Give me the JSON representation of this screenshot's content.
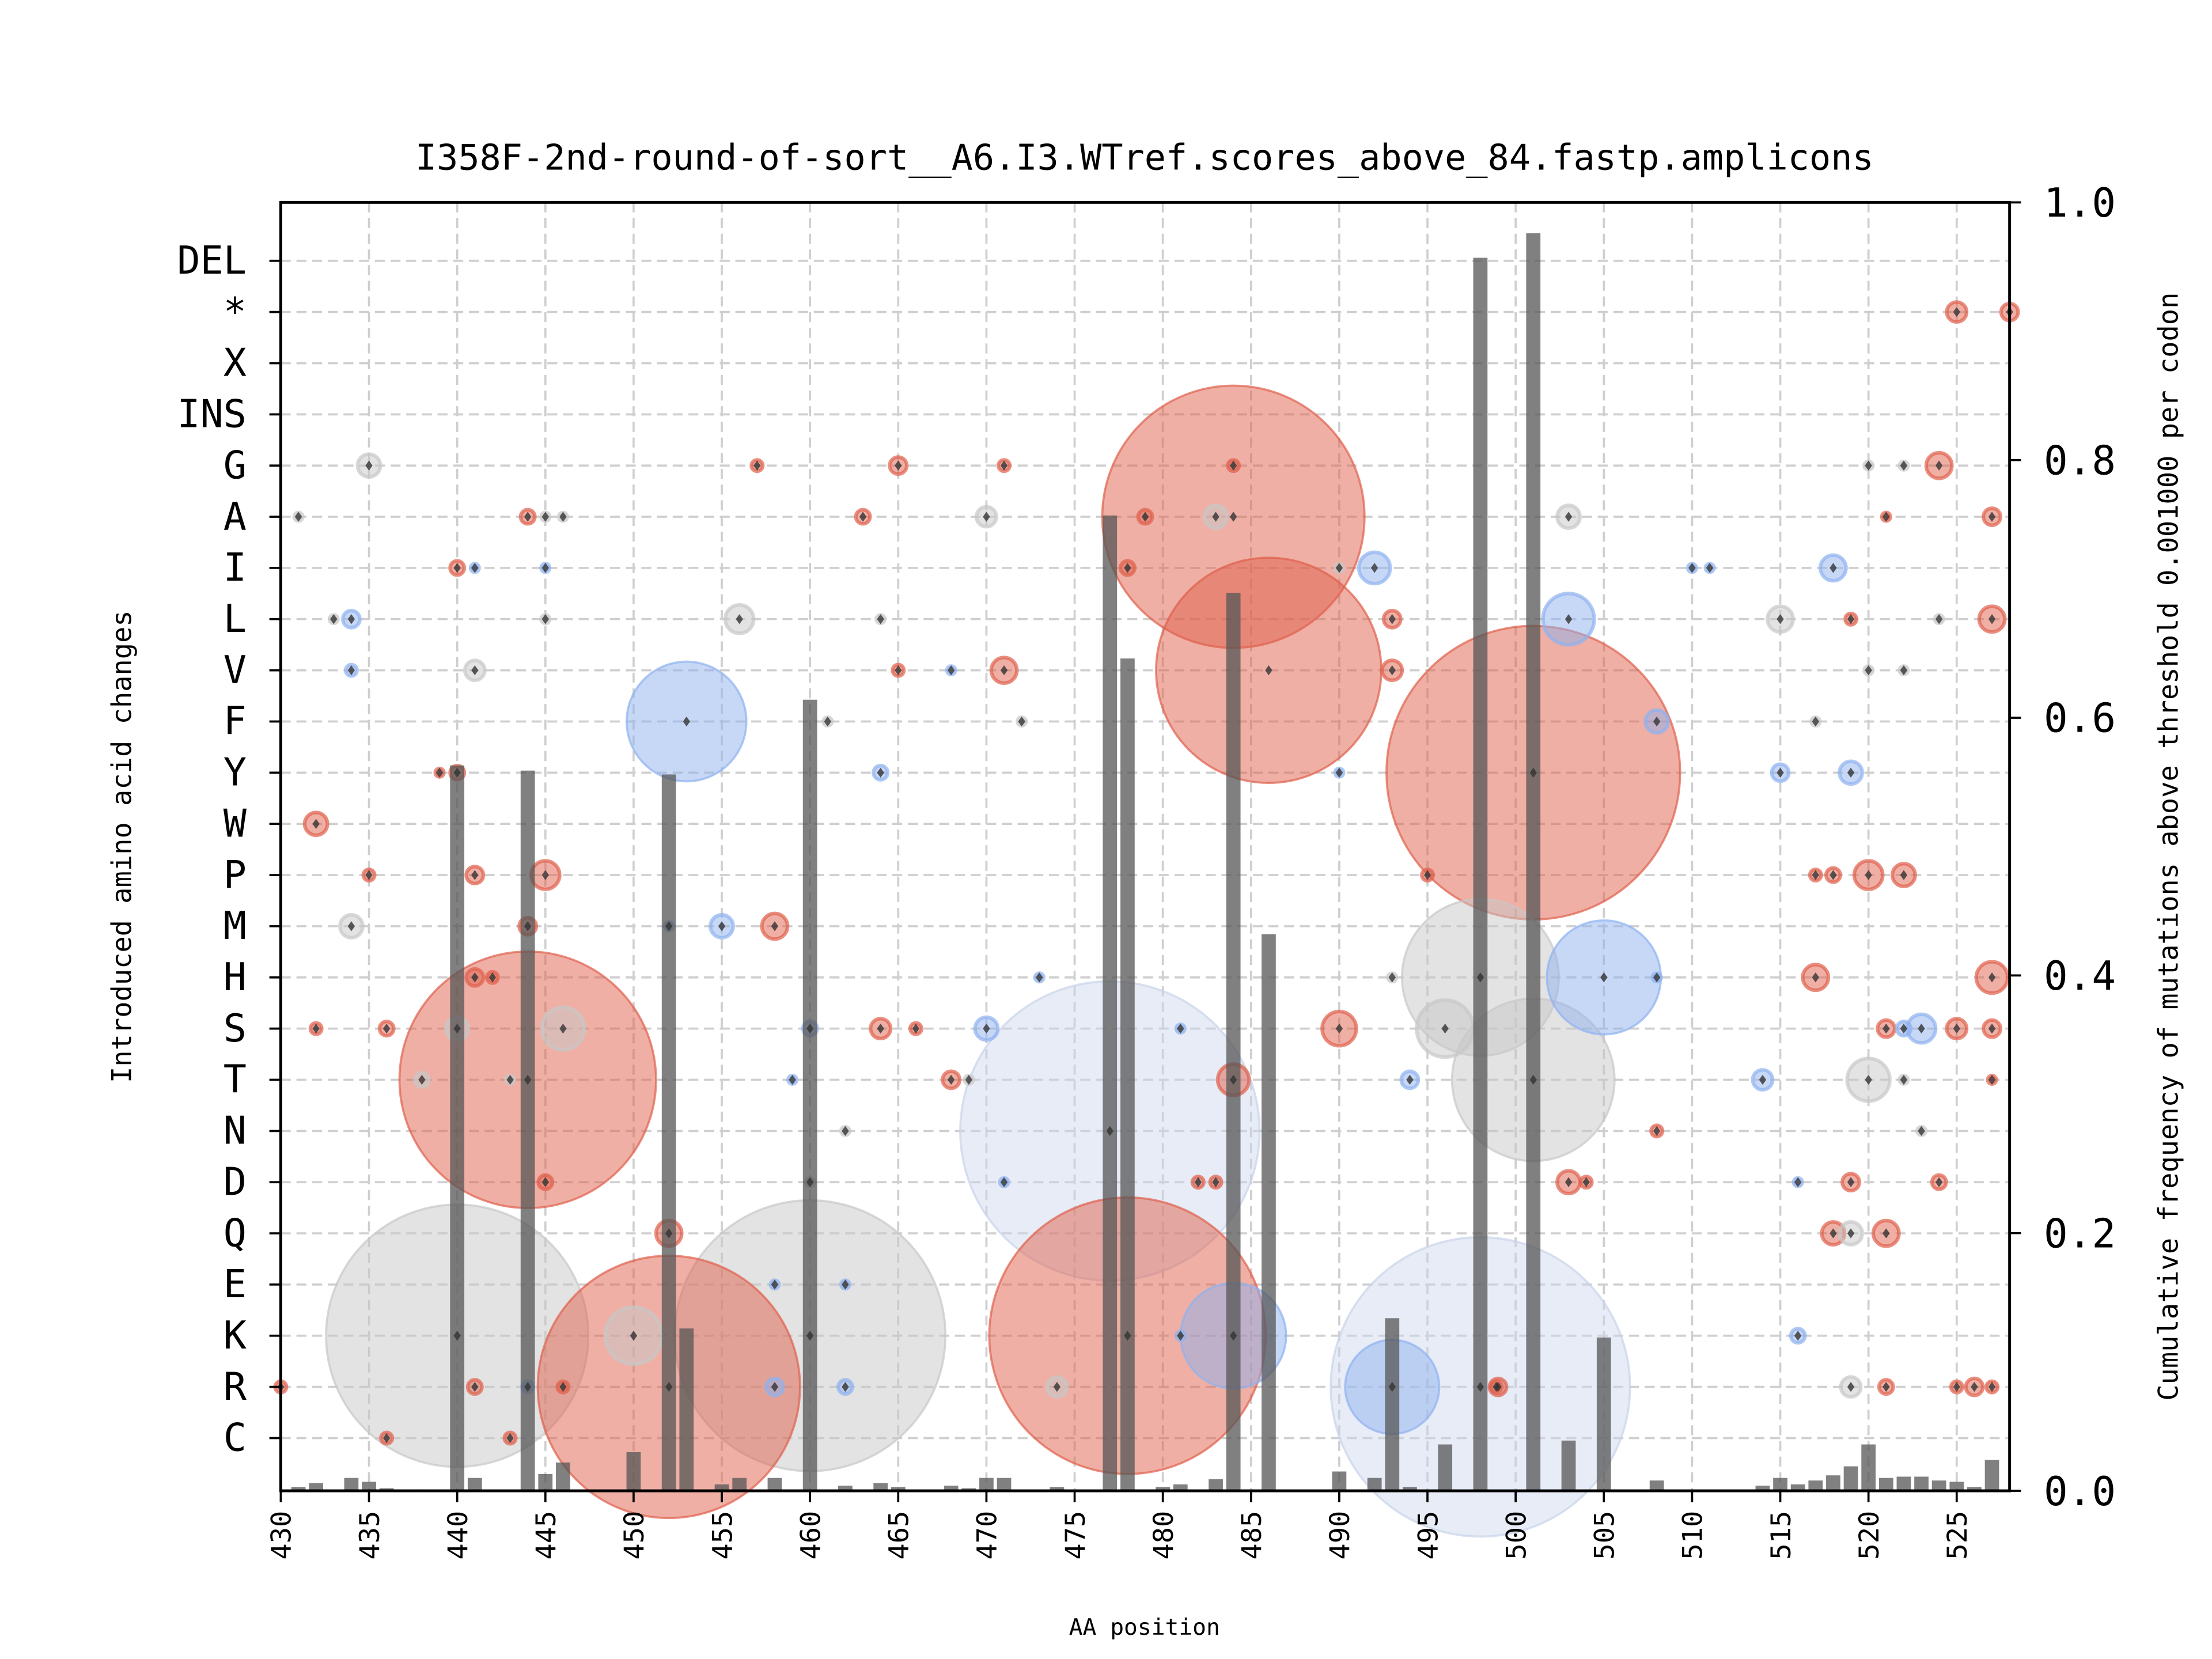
{
  "chart_data": {
    "type": "scatter",
    "title": "I358F-2nd-round-of-sort__A6.I3.WTref.scores_above_84.fastp.amplicons",
    "xlabel": "AA position",
    "ylabel": "Introduced amino acid changes",
    "ylabel_right": "Cumulative frequency of mutations above threshold 0.001000 per codon",
    "xlim": [
      430,
      528
    ],
    "ylim_right": [
      0,
      1.0
    ],
    "grid": true,
    "x_ticks": [
      "430",
      "435",
      "440",
      "445",
      "450",
      "455",
      "460",
      "465",
      "470",
      "475",
      "480",
      "485",
      "490",
      "495",
      "500",
      "505",
      "510",
      "515",
      "520",
      "525"
    ],
    "right_ticks": [
      "0.0",
      "0.2",
      "0.4",
      "0.6",
      "0.8",
      "1.0"
    ],
    "categories": [
      "DEL",
      "*",
      "X",
      "INS",
      "G",
      "A",
      "I",
      "L",
      "V",
      "F",
      "Y",
      "W",
      "P",
      "M",
      "H",
      "S",
      "T",
      "N",
      "D",
      "Q",
      "E",
      "K",
      "R",
      "C"
    ],
    "colors": {
      "red": "#e0604c",
      "blue": "#8fb2ef",
      "gray": "#c8c8c8",
      "pale": "#c9d4ea",
      "bar": "#555555",
      "marker": "#333333"
    },
    "bars": [
      [
        431,
        0.003
      ],
      [
        432,
        0.006
      ],
      [
        434,
        0.01
      ],
      [
        435,
        0.007
      ],
      [
        436,
        0.002
      ],
      [
        438,
        0.001
      ],
      [
        440,
        0.563
      ],
      [
        441,
        0.01
      ],
      [
        444,
        0.559
      ],
      [
        445,
        0.013
      ],
      [
        446,
        0.022
      ],
      [
        450,
        0.03
      ],
      [
        452,
        0.556
      ],
      [
        453,
        0.126
      ],
      [
        455,
        0.005
      ],
      [
        456,
        0.01
      ],
      [
        458,
        0.01
      ],
      [
        460,
        0.614
      ],
      [
        462,
        0.004
      ],
      [
        464,
        0.006
      ],
      [
        465,
        0.003
      ],
      [
        468,
        0.004
      ],
      [
        469,
        0.002
      ],
      [
        470,
        0.01
      ],
      [
        471,
        0.01
      ],
      [
        474,
        0.003
      ],
      [
        477,
        0.757
      ],
      [
        478,
        0.646
      ],
      [
        480,
        0.003
      ],
      [
        481,
        0.005
      ],
      [
        483,
        0.009
      ],
      [
        484,
        0.697
      ],
      [
        486,
        0.432
      ],
      [
        490,
        0.015
      ],
      [
        492,
        0.01
      ],
      [
        493,
        0.134
      ],
      [
        494,
        0.003
      ],
      [
        496,
        0.036
      ],
      [
        498,
        0.957
      ],
      [
        501,
        0.976
      ],
      [
        503,
        0.039
      ],
      [
        505,
        0.119
      ],
      [
        508,
        0.008
      ],
      [
        514,
        0.004
      ],
      [
        515,
        0.01
      ],
      [
        516,
        0.005
      ],
      [
        517,
        0.008
      ],
      [
        518,
        0.012
      ],
      [
        519,
        0.019
      ],
      [
        520,
        0.036
      ],
      [
        521,
        0.01
      ],
      [
        522,
        0.011
      ],
      [
        523,
        0.011
      ],
      [
        524,
        0.008
      ],
      [
        525,
        0.007
      ],
      [
        526,
        0.003
      ],
      [
        527,
        0.024
      ]
    ],
    "points": [
      [
        435,
        "G",
        "gray",
        0.0064
      ],
      [
        457,
        "G",
        "red",
        0.0016
      ],
      [
        465,
        "G",
        "red",
        0.0036
      ],
      [
        471,
        "G",
        "red",
        0.0016
      ],
      [
        484,
        "G",
        "red",
        0.0016
      ],
      [
        520,
        "G",
        "gray",
        0.0004
      ],
      [
        522,
        "G",
        "gray",
        0.0009
      ],
      [
        524,
        "G",
        "red",
        0.0081
      ],
      [
        431,
        "A",
        "gray",
        0.0009
      ],
      [
        444,
        "A",
        "red",
        0.0025
      ],
      [
        445,
        "A",
        "gray",
        0.0009
      ],
      [
        446,
        "A",
        "gray",
        0.0009
      ],
      [
        463,
        "A",
        "red",
        0.0025
      ],
      [
        470,
        "A",
        "gray",
        0.0049
      ],
      [
        479,
        "A",
        "red",
        0.0025
      ],
      [
        483,
        "A",
        "gray",
        0.0064
      ],
      [
        484,
        "A",
        "red",
        0.8464
      ],
      [
        503,
        "A",
        "gray",
        0.0064
      ],
      [
        521,
        "A",
        "red",
        0.0009
      ],
      [
        527,
        "A",
        "red",
        0.0036
      ],
      [
        440,
        "I",
        "red",
        0.0025
      ],
      [
        441,
        "I",
        "blue",
        0.0009
      ],
      [
        445,
        "I",
        "blue",
        0.0009
      ],
      [
        478,
        "I",
        "red",
        0.0025
      ],
      [
        490,
        "I",
        "gray",
        0.0004
      ],
      [
        492,
        "I",
        "blue",
        0.0121
      ],
      [
        510,
        "I",
        "blue",
        0.0009
      ],
      [
        511,
        "I",
        "blue",
        0.0009
      ],
      [
        518,
        "I",
        "blue",
        0.0081
      ],
      [
        433,
        "L",
        "gray",
        0.0009
      ],
      [
        434,
        "L",
        "blue",
        0.0036
      ],
      [
        445,
        "L",
        "gray",
        0.0009
      ],
      [
        456,
        "L",
        "gray",
        0.01
      ],
      [
        464,
        "L",
        "gray",
        0.0009
      ],
      [
        493,
        "L",
        "red",
        0.0036
      ],
      [
        503,
        "L",
        "blue",
        0.0324
      ],
      [
        515,
        "L",
        "gray",
        0.0081
      ],
      [
        519,
        "L",
        "red",
        0.0016
      ],
      [
        524,
        "L",
        "gray",
        0.0004
      ],
      [
        527,
        "L",
        "red",
        0.0081
      ],
      [
        434,
        "V",
        "blue",
        0.0016
      ],
      [
        441,
        "V",
        "gray",
        0.0049
      ],
      [
        465,
        "V",
        "red",
        0.0016
      ],
      [
        468,
        "V",
        "blue",
        0.0009
      ],
      [
        471,
        "V",
        "red",
        0.0081
      ],
      [
        486,
        "V",
        "red",
        0.6241
      ],
      [
        493,
        "V",
        "red",
        0.0049
      ],
      [
        520,
        "V",
        "gray",
        0.0004
      ],
      [
        522,
        "V",
        "gray",
        0.0004
      ],
      [
        453,
        "F",
        "blue",
        0.1764
      ],
      [
        461,
        "F",
        "gray",
        0.0009
      ],
      [
        472,
        "F",
        "gray",
        0.0004
      ],
      [
        508,
        "F",
        "blue",
        0.0064
      ],
      [
        517,
        "F",
        "gray",
        0.0004
      ],
      [
        439,
        "Y",
        "red",
        0.0009
      ],
      [
        440,
        "Y",
        "red",
        0.0025
      ],
      [
        464,
        "Y",
        "blue",
        0.0025
      ],
      [
        490,
        "Y",
        "blue",
        0.0009
      ],
      [
        501,
        "Y",
        "red",
        1.0609
      ],
      [
        515,
        "Y",
        "blue",
        0.0036
      ],
      [
        519,
        "Y",
        "blue",
        0.0064
      ],
      [
        432,
        "W",
        "red",
        0.0064
      ],
      [
        435,
        "P",
        "red",
        0.0016
      ],
      [
        441,
        "P",
        "red",
        0.0036
      ],
      [
        445,
        "P",
        "red",
        0.01
      ],
      [
        495,
        "P",
        "red",
        0.0016
      ],
      [
        517,
        "P",
        "red",
        0.0016
      ],
      [
        518,
        "P",
        "red",
        0.0025
      ],
      [
        520,
        "P",
        "red",
        0.01
      ],
      [
        522,
        "P",
        "red",
        0.0064
      ],
      [
        434,
        "M",
        "gray",
        0.0064
      ],
      [
        444,
        "M",
        "red",
        0.0036
      ],
      [
        452,
        "M",
        "blue",
        0.0009
      ],
      [
        455,
        "M",
        "blue",
        0.0064
      ],
      [
        458,
        "M",
        "red",
        0.0081
      ],
      [
        441,
        "H",
        "red",
        0.0036
      ],
      [
        442,
        "H",
        "red",
        0.0016
      ],
      [
        473,
        "H",
        "blue",
        0.0004
      ],
      [
        493,
        "H",
        "gray",
        0.0009
      ],
      [
        498,
        "H",
        "gray",
        0.3025
      ],
      [
        505,
        "H",
        "blue",
        0.16
      ],
      [
        508,
        "H",
        "blue",
        0.0009
      ],
      [
        517,
        "H",
        "red",
        0.0081
      ],
      [
        527,
        "H",
        "red",
        0.0121
      ],
      [
        432,
        "S",
        "red",
        0.0016
      ],
      [
        436,
        "S",
        "red",
        0.0025
      ],
      [
        440,
        "S",
        "gray",
        0.0064
      ],
      [
        446,
        "S",
        "gray",
        0.0225
      ],
      [
        460,
        "S",
        "blue",
        0.0025
      ],
      [
        464,
        "S",
        "red",
        0.0049
      ],
      [
        466,
        "S",
        "red",
        0.0016
      ],
      [
        470,
        "S",
        "blue",
        0.0064
      ],
      [
        481,
        "S",
        "blue",
        0.0009
      ],
      [
        490,
        "S",
        "red",
        0.0144
      ],
      [
        496,
        "S",
        "gray",
        0.04
      ],
      [
        521,
        "S",
        "red",
        0.0036
      ],
      [
        522,
        "S",
        "blue",
        0.0025
      ],
      [
        523,
        "S",
        "blue",
        0.01
      ],
      [
        525,
        "S",
        "red",
        0.0049
      ],
      [
        527,
        "S",
        "red",
        0.0036
      ],
      [
        438,
        "T",
        "gray",
        0.0025
      ],
      [
        443,
        "T",
        "gray",
        0.0009
      ],
      [
        444,
        "T",
        "red",
        0.81
      ],
      [
        459,
        "T",
        "blue",
        0.0009
      ],
      [
        468,
        "T",
        "red",
        0.0036
      ],
      [
        469,
        "T",
        "gray",
        0.0009
      ],
      [
        484,
        "T",
        "red",
        0.0121
      ],
      [
        494,
        "T",
        "blue",
        0.0036
      ],
      [
        501,
        "T",
        "gray",
        0.3249
      ],
      [
        514,
        "T",
        "blue",
        0.0049
      ],
      [
        520,
        "T",
        "gray",
        0.0225
      ],
      [
        522,
        "T",
        "gray",
        0.0009
      ],
      [
        527,
        "T",
        "red",
        0.0009
      ],
      [
        462,
        "N",
        "gray",
        0.0004
      ],
      [
        477,
        "N",
        "pale",
        1.1025
      ],
      [
        508,
        "N",
        "red",
        0.0016
      ],
      [
        523,
        "N",
        "gray",
        0.0009
      ],
      [
        445,
        "D",
        "red",
        0.0025
      ],
      [
        460,
        "D",
        "gray",
        0.0009
      ],
      [
        471,
        "D",
        "blue",
        0.0009
      ],
      [
        482,
        "D",
        "red",
        0.0016
      ],
      [
        483,
        "D",
        "red",
        0.0016
      ],
      [
        503,
        "D",
        "red",
        0.0064
      ],
      [
        504,
        "D",
        "red",
        0.0016
      ],
      [
        516,
        "D",
        "blue",
        0.0009
      ],
      [
        519,
        "D",
        "red",
        0.0036
      ],
      [
        524,
        "D",
        "red",
        0.0025
      ],
      [
        452,
        "Q",
        "red",
        0.0081
      ],
      [
        518,
        "Q",
        "red",
        0.0064
      ],
      [
        519,
        "Q",
        "gray",
        0.0064
      ],
      [
        521,
        "Q",
        "red",
        0.0081
      ],
      [
        458,
        "E",
        "blue",
        0.0009
      ],
      [
        462,
        "E",
        "blue",
        0.0009
      ],
      [
        440,
        "K",
        "gray",
        0.8464
      ],
      [
        450,
        "K",
        "gray",
        0.04
      ],
      [
        460,
        "K",
        "gray",
        0.9025
      ],
      [
        478,
        "K",
        "red",
        0.9409
      ],
      [
        484,
        "K",
        "blue",
        0.1369
      ],
      [
        481,
        "K",
        "blue",
        0.0009
      ],
      [
        516,
        "K",
        "blue",
        0.0025
      ],
      [
        430,
        "R",
        "red",
        0.0016
      ],
      [
        441,
        "R",
        "red",
        0.0025
      ],
      [
        444,
        "R",
        "blue",
        0.0016
      ],
      [
        446,
        "R",
        "red",
        0.0016
      ],
      [
        452,
        "R",
        "red",
        0.8464
      ],
      [
        458,
        "R",
        "blue",
        0.0036
      ],
      [
        462,
        "R",
        "blue",
        0.0025
      ],
      [
        474,
        "R",
        "gray",
        0.0049
      ],
      [
        493,
        "R",
        "blue",
        0.1089
      ],
      [
        498,
        "R",
        "pale",
        1.1025
      ],
      [
        498.9,
        "R",
        "red",
        0.0016
      ],
      [
        499,
        "R",
        "red",
        0.0036
      ],
      [
        519,
        "R",
        "gray",
        0.0049
      ],
      [
        521,
        "R",
        "red",
        0.0025
      ],
      [
        525,
        "R",
        "red",
        0.0016
      ],
      [
        526,
        "R",
        "red",
        0.0036
      ],
      [
        527,
        "R",
        "red",
        0.0016
      ],
      [
        436,
        "C",
        "red",
        0.0016
      ],
      [
        443,
        "C",
        "red",
        0.0016
      ],
      [
        525,
        "*",
        "red",
        0.0049
      ],
      [
        528,
        "*",
        "red",
        0.0036
      ]
    ]
  }
}
